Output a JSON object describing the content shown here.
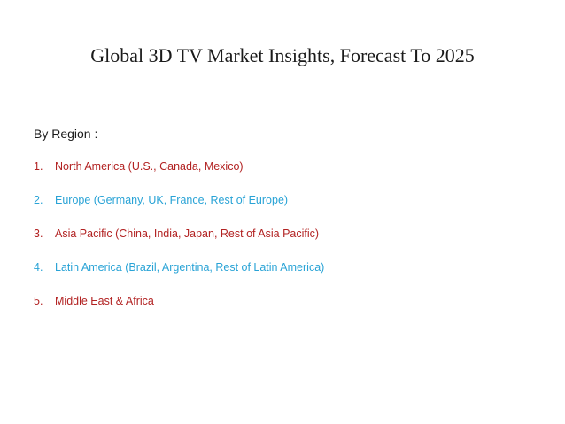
{
  "slide": {
    "title": "Global 3D TV Market Insights, Forecast To 2025",
    "subheading": "By Region :",
    "regions": [
      {
        "number": "1.",
        "text": "North America (U.S., Canada, Mexico)",
        "color": "#b22222"
      },
      {
        "number": "2.",
        "text": "Europe (Germany, UK, France, Rest of Europe)",
        "color": "#29a3d6"
      },
      {
        "number": "3.",
        "text": "Asia Pacific (China, India, Japan, Rest of Asia Pacific)",
        "color": "#b22222"
      },
      {
        "number": "4.",
        "text": "Latin America (Brazil, Argentina, Rest of Latin America)",
        "color": "#29a3d6"
      },
      {
        "number": "5.",
        "text": "Middle East & Africa",
        "color": "#b22222"
      }
    ]
  }
}
